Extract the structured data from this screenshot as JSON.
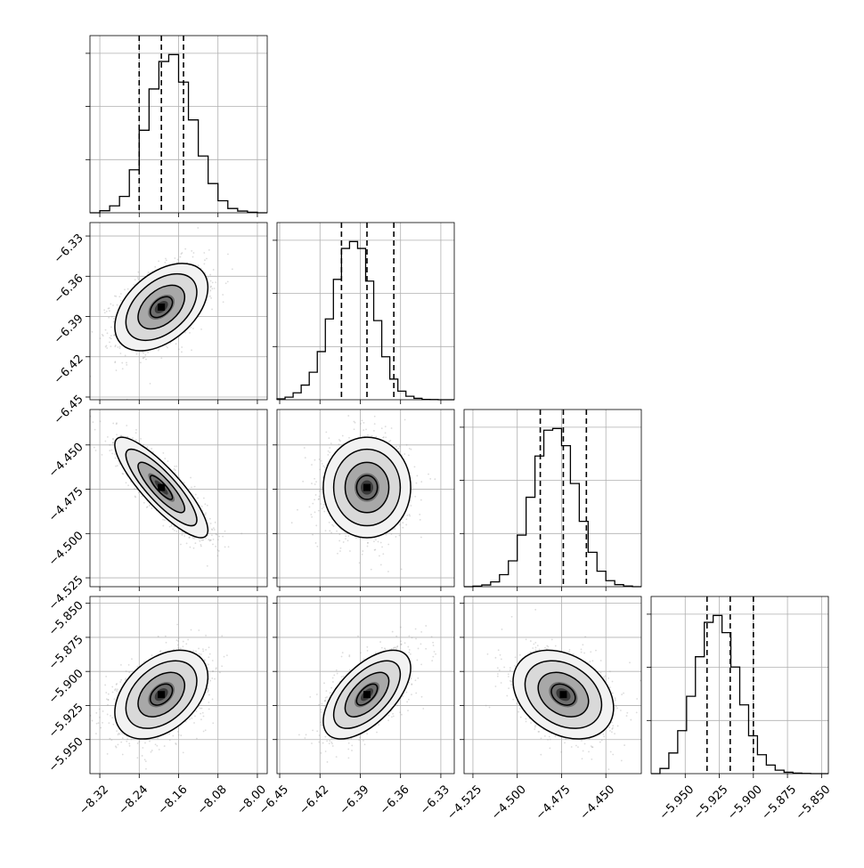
{
  "colors": {
    "axis": "#000000",
    "grid": "#b0b0b0",
    "samples": "#9a9a9a",
    "quantile": "#000000"
  },
  "chart_data": [
    {
      "type": "histogram",
      "row": 0,
      "col": 0,
      "param": 0,
      "xlim": [
        -8.34,
        -7.98
      ],
      "quantiles": [
        -8.24,
        -8.195,
        -8.15
      ],
      "bins_x0": -8.34,
      "bin_width": 0.02,
      "counts": [
        0,
        12,
        40,
        95,
        250,
        480,
        720,
        880,
        920,
        760,
        540,
        330,
        170,
        70,
        25,
        10,
        3,
        0
      ]
    },
    {
      "type": "histogram",
      "row": 1,
      "col": 1,
      "param": 1,
      "xlim": [
        -6.452,
        -6.32
      ],
      "quantiles": [
        -6.404,
        -6.385,
        -6.365
      ],
      "bins_x0": -6.452,
      "bin_width": 0.006,
      "counts": [
        5,
        15,
        40,
        85,
        160,
        280,
        470,
        700,
        880,
        920,
        880,
        690,
        460,
        250,
        120,
        50,
        20,
        8,
        2,
        1,
        0,
        0
      ]
    },
    {
      "type": "histogram",
      "row": 2,
      "col": 2,
      "param": 2,
      "xlim": [
        -4.53,
        -4.43
      ],
      "quantiles": [
        -4.487,
        -4.474,
        -4.461
      ],
      "bins_x0": -4.53,
      "bin_width": 0.005,
      "counts": [
        0,
        3,
        10,
        28,
        70,
        150,
        300,
        520,
        760,
        910,
        920,
        820,
        600,
        380,
        200,
        90,
        35,
        12,
        4,
        0
      ]
    },
    {
      "type": "histogram",
      "row": 3,
      "col": 3,
      "param": 3,
      "xlim": [
        -5.975,
        -5.845
      ],
      "quantiles": [
        -5.934,
        -5.917,
        -5.9
      ],
      "bins_x0": -5.975,
      "bin_width": 0.0065,
      "counts": [
        0,
        30,
        120,
        250,
        450,
        680,
        880,
        920,
        820,
        620,
        400,
        220,
        110,
        50,
        20,
        8,
        3,
        1,
        0,
        0
      ]
    },
    {
      "type": "scatter",
      "row": 1,
      "col": 0,
      "xparam": 0,
      "yparam": 1,
      "xlim": [
        -8.34,
        -7.98
      ],
      "ylim": [
        -6.452,
        -6.32
      ],
      "center": [
        -8.195,
        -6.383
      ],
      "spread": [
        0.045,
        0.0155
      ],
      "rho": 0.45
    },
    {
      "type": "scatter",
      "row": 2,
      "col": 0,
      "xparam": 0,
      "yparam": 2,
      "xlim": [
        -8.34,
        -7.98
      ],
      "ylim": [
        -4.53,
        -4.43
      ],
      "center": [
        -8.195,
        -4.474
      ],
      "spread": [
        0.045,
        0.0135
      ],
      "rho": -0.85
    },
    {
      "type": "scatter",
      "row": 2,
      "col": 1,
      "xparam": 1,
      "yparam": 2,
      "xlim": [
        -6.452,
        -6.32
      ],
      "ylim": [
        -4.53,
        -4.43
      ],
      "center": [
        -6.385,
        -4.474
      ],
      "spread": [
        0.0155,
        0.0135
      ],
      "rho": 0.0
    },
    {
      "type": "scatter",
      "row": 3,
      "col": 0,
      "xparam": 0,
      "yparam": 3,
      "xlim": [
        -8.34,
        -7.98
      ],
      "ylim": [
        -5.975,
        -5.845
      ],
      "center": [
        -8.195,
        -5.917
      ],
      "spread": [
        0.045,
        0.0155
      ],
      "rho": 0.4
    },
    {
      "type": "scatter",
      "row": 3,
      "col": 1,
      "xparam": 1,
      "yparam": 3,
      "xlim": [
        -6.452,
        -6.32
      ],
      "ylim": [
        -5.975,
        -5.845
      ],
      "center": [
        -6.385,
        -5.917
      ],
      "spread": [
        0.0155,
        0.0155
      ],
      "rho": 0.6
    },
    {
      "type": "scatter",
      "row": 3,
      "col": 2,
      "xparam": 2,
      "yparam": 3,
      "xlim": [
        -4.53,
        -4.43
      ],
      "ylim": [
        -5.975,
        -5.845
      ],
      "center": [
        -4.474,
        -5.917
      ],
      "spread": [
        0.0135,
        0.0155
      ],
      "rho": -0.3
    }
  ],
  "x_ticks": [
    [
      "−8.32",
      "−8.24",
      "−8.16",
      "−8.08",
      "−8.00"
    ],
    [
      "−6.45",
      "−6.42",
      "−6.39",
      "−6.36",
      "−6.33"
    ],
    [
      "−4.525",
      "−4.500",
      "−4.475",
      "−4.450"
    ],
    [
      "−5.950",
      "−5.925",
      "−5.900",
      "−5.875",
      "−5.850"
    ]
  ],
  "x_tick_values": [
    [
      -8.32,
      -8.24,
      -8.16,
      -8.08,
      -8.0
    ],
    [
      -6.45,
      -6.42,
      -6.39,
      -6.36,
      -6.33
    ],
    [
      -4.525,
      -4.5,
      -4.475,
      -4.45
    ],
    [
      -5.95,
      -5.925,
      -5.9,
      -5.875,
      -5.85
    ]
  ],
  "y_ticks": [
    [],
    [
      "−6.33",
      "−6.36",
      "−6.39",
      "−6.42",
      "−6.45"
    ],
    [
      "−4.450",
      "−4.475",
      "−4.500",
      "−4.525"
    ],
    [
      "−5.850",
      "−5.875",
      "−5.900",
      "−5.925",
      "−5.950"
    ]
  ],
  "y_tick_values": [
    [],
    [
      -6.33,
      -6.36,
      -6.39,
      -6.42,
      -6.45
    ],
    [
      -4.45,
      -4.475,
      -4.5,
      -4.525
    ],
    [
      -5.85,
      -5.875,
      -5.9,
      -5.925,
      -5.95
    ]
  ]
}
